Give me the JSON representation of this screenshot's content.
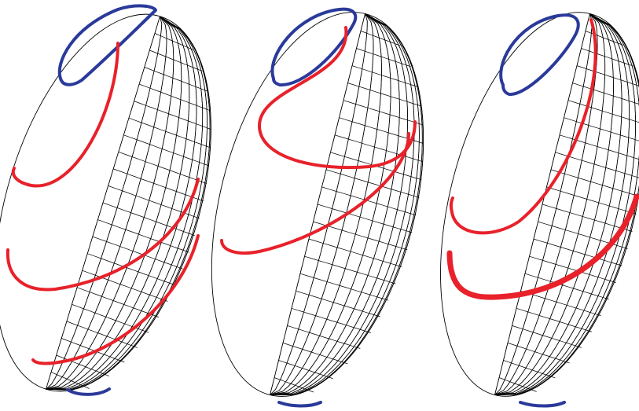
{
  "figure": {
    "background": "#ffffff",
    "mesh_color": "#000000",
    "panel_count": 3,
    "curve_colors": {
      "blue": "#2a3a9a",
      "red": "#e8212a"
    },
    "panels": [
      {
        "name": "left-ellipsoid",
        "blue_curves": 2,
        "red_curves": 3
      },
      {
        "name": "middle-ellipsoid",
        "blue_curves": 2,
        "red_curves": 3
      },
      {
        "name": "right-ellipsoid",
        "blue_curves": 2,
        "red_curves": 3
      }
    ]
  }
}
